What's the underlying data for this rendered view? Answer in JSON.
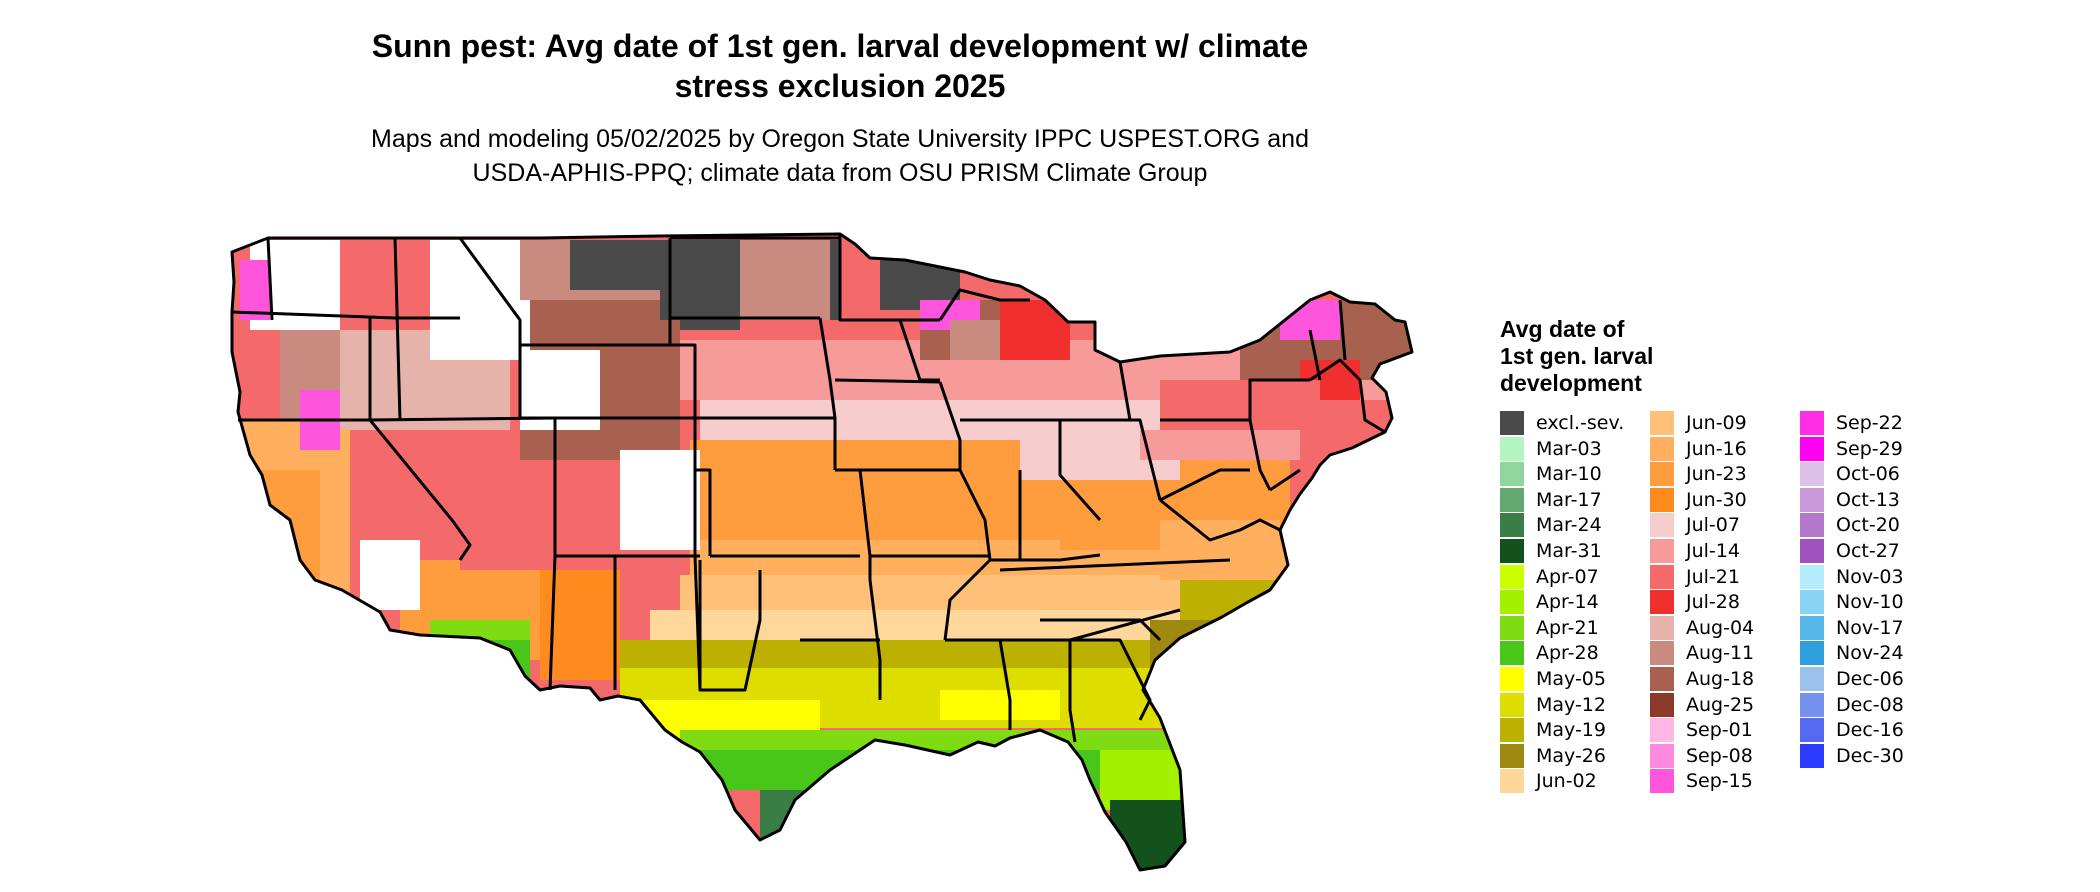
{
  "title_line1": "Sunn pest: Avg date of 1st gen. larval development w/ climate",
  "title_line2": "stress exclusion 2025",
  "subtitle_line1": "Maps and modeling 05/02/2025 by Oregon State University IPPC USPEST.ORG and",
  "subtitle_line2": "USDA-APHIS-PPQ; climate data from OSU PRISM Climate Group",
  "legend": {
    "title_line1": "Avg date of",
    "title_line2": "1st gen. larval",
    "title_line3": "development",
    "items": [
      {
        "label": "excl.-sev.",
        "color": "#4a4a4a"
      },
      {
        "label": "Mar-03",
        "color": "#b3f5c1"
      },
      {
        "label": "Mar-10",
        "color": "#8fd69e"
      },
      {
        "label": "Mar-17",
        "color": "#62a86f"
      },
      {
        "label": "Mar-24",
        "color": "#3a7d45"
      },
      {
        "label": "Mar-31",
        "color": "#13521c"
      },
      {
        "label": "Apr-07",
        "color": "#ccff00"
      },
      {
        "label": "Apr-14",
        "color": "#a3f000"
      },
      {
        "label": "Apr-21",
        "color": "#7fdc12"
      },
      {
        "label": "Apr-28",
        "color": "#48c61a"
      },
      {
        "label": "May-05",
        "color": "#ffff00"
      },
      {
        "label": "May-12",
        "color": "#dddd00"
      },
      {
        "label": "May-19",
        "color": "#bcb000"
      },
      {
        "label": "May-26",
        "color": "#9e8a10"
      },
      {
        "label": "Jun-02",
        "color": "#ffd79a"
      },
      {
        "label": "Jun-09",
        "color": "#ffc17a"
      },
      {
        "label": "Jun-16",
        "color": "#ffaf5e"
      },
      {
        "label": "Jun-23",
        "color": "#ff9d3e"
      },
      {
        "label": "Jun-30",
        "color": "#ff8a1e"
      },
      {
        "label": "Jul-07",
        "color": "#f7cccc"
      },
      {
        "label": "Jul-14",
        "color": "#f79a9a"
      },
      {
        "label": "Jul-21",
        "color": "#f46a6a"
      },
      {
        "label": "Jul-28",
        "color": "#f22f2f"
      },
      {
        "label": "Aug-04",
        "color": "#e6b3aa"
      },
      {
        "label": "Aug-11",
        "color": "#c98a7f"
      },
      {
        "label": "Aug-18",
        "color": "#a8614f"
      },
      {
        "label": "Aug-25",
        "color": "#8b3a2a"
      },
      {
        "label": "Sep-01",
        "color": "#ffb8e6"
      },
      {
        "label": "Sep-08",
        "color": "#ff8ae0"
      },
      {
        "label": "Sep-15",
        "color": "#ff55dd"
      },
      {
        "label": "Sep-22",
        "color": "#ff2ee6"
      },
      {
        "label": "Sep-29",
        "color": "#ff00f0"
      },
      {
        "label": "Oct-06",
        "color": "#dcc0e8"
      },
      {
        "label": "Oct-13",
        "color": "#c89ad9"
      },
      {
        "label": "Oct-20",
        "color": "#b477cc"
      },
      {
        "label": "Oct-27",
        "color": "#a052bf"
      },
      {
        "label": "Nov-03",
        "color": "#b5ebff"
      },
      {
        "label": "Nov-10",
        "color": "#88d4f4"
      },
      {
        "label": "Nov-17",
        "color": "#56b8ea"
      },
      {
        "label": "Nov-24",
        "color": "#2d9fdd"
      },
      {
        "label": "Dec-06",
        "color": "#9ac0ec"
      },
      {
        "label": "Dec-08",
        "color": "#7690ee"
      },
      {
        "label": "Dec-16",
        "color": "#5568f0"
      },
      {
        "label": "Dec-30",
        "color": "#2a3cff"
      }
    ]
  }
}
